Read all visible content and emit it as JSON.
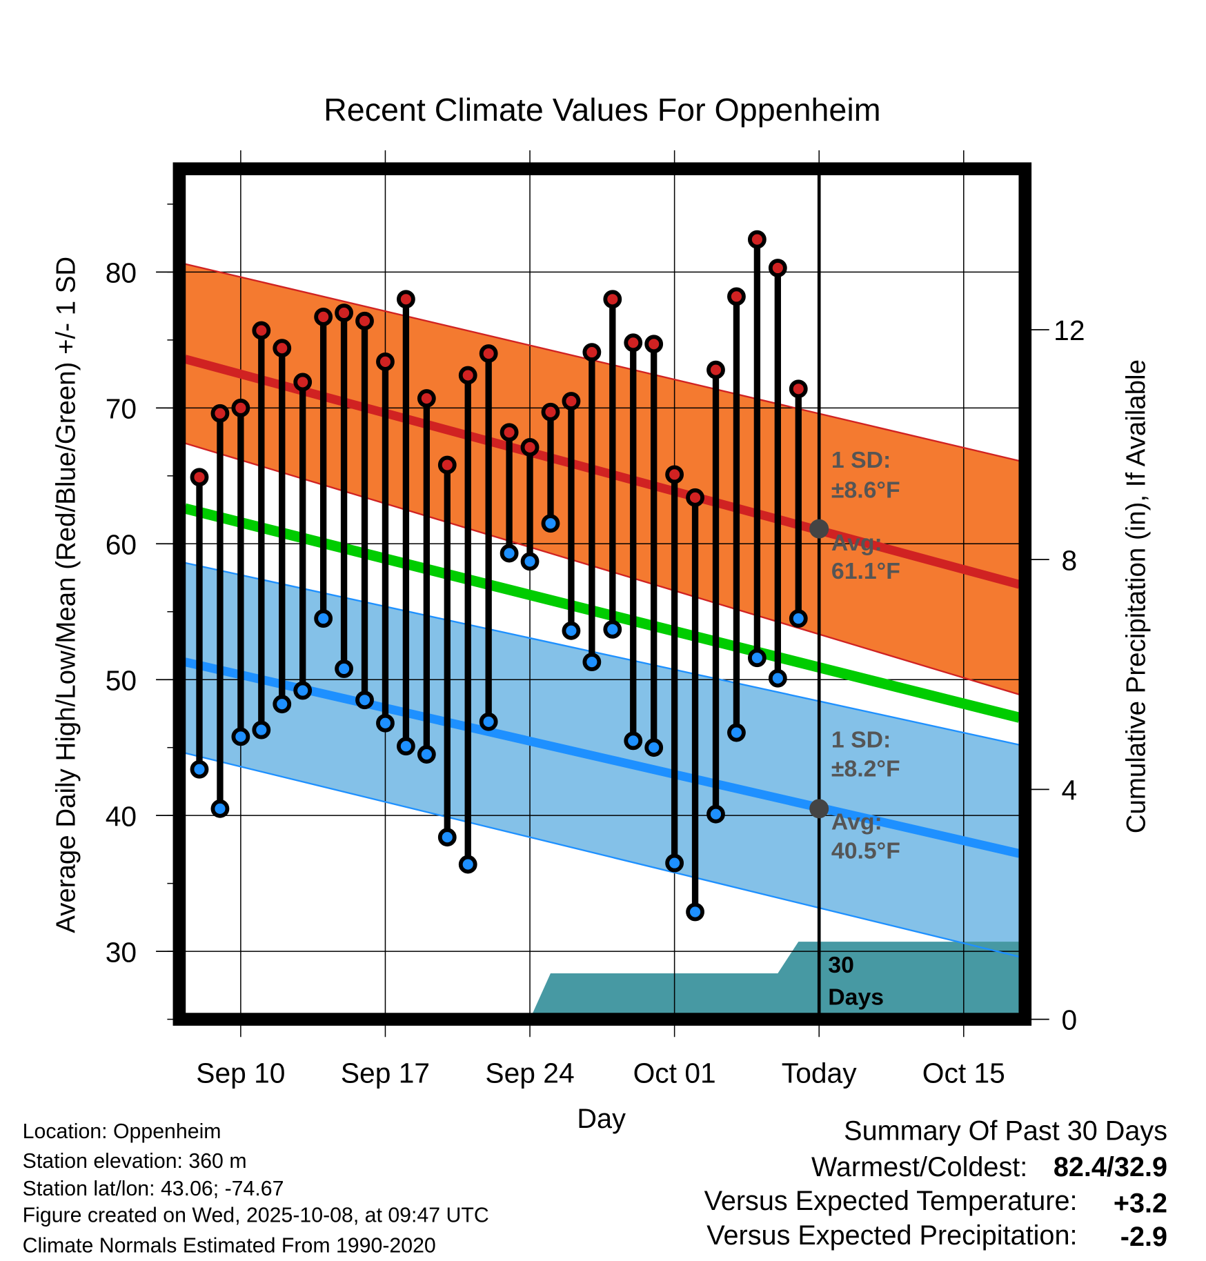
{
  "chart_data": {
    "type": "line",
    "title": "Recent Climate Values For Oppenheim",
    "xlabel": "Day",
    "ylabel": "Average Daily High/Low/Mean (Red/Blue/Green) +/- 1 SD",
    "y2label": "Cumulative Precipitation (in), If Available",
    "xlim_days_from_sep8": [
      -0.7,
      39.7
    ],
    "ylim": [
      25,
      87.6
    ],
    "y2lim": [
      0,
      14.8
    ],
    "yticks": [
      "30",
      "40",
      "50",
      "60",
      "70",
      "80"
    ],
    "y2ticks": [
      "0",
      "4",
      "8",
      "12"
    ],
    "xticks": [
      {
        "day": 2,
        "label": "Sep 10"
      },
      {
        "day": 9,
        "label": "Sep 17"
      },
      {
        "day": 16,
        "label": "Sep 24"
      },
      {
        "day": 23,
        "label": "Oct 01"
      },
      {
        "day": 30,
        "label": "Today"
      },
      {
        "day": 37,
        "label": "Oct 15"
      }
    ],
    "dates": [
      "Sep 08",
      "Sep 09",
      "Sep 10",
      "Sep 11",
      "Sep 12",
      "Sep 13",
      "Sep 14",
      "Sep 15",
      "Sep 16",
      "Sep 17",
      "Sep 18",
      "Sep 19",
      "Sep 20",
      "Sep 21",
      "Sep 22",
      "Sep 23",
      "Sep 24",
      "Sep 25",
      "Sep 26",
      "Sep 27",
      "Sep 28",
      "Sep 29",
      "Sep 30",
      "Oct 01",
      "Oct 02",
      "Oct 03",
      "Oct 04",
      "Oct 05",
      "Oct 06",
      "Oct 07"
    ],
    "highs": [
      64.9,
      69.6,
      70.0,
      75.7,
      74.4,
      71.9,
      76.7,
      77.0,
      76.4,
      73.4,
      78.0,
      70.7,
      65.8,
      72.4,
      74.0,
      68.2,
      67.1,
      69.7,
      70.5,
      74.1,
      78.0,
      74.8,
      74.7,
      65.1,
      63.4,
      72.8,
      78.2,
      82.4,
      80.3,
      71.4
    ],
    "lows": [
      43.4,
      40.5,
      45.8,
      46.3,
      48.2,
      49.2,
      54.5,
      50.8,
      48.5,
      46.8,
      45.1,
      44.5,
      38.4,
      36.4,
      46.9,
      59.3,
      58.7,
      61.5,
      53.6,
      51.3,
      53.7,
      45.5,
      45.0,
      36.5,
      32.9,
      40.1,
      46.1,
      51.6,
      50.1,
      54.5
    ],
    "normals_at_xlim": {
      "high_plus_sd": [
        80.6,
        66.1
      ],
      "high_avg": [
        73.6,
        57.0
      ],
      "high_minus_sd": [
        67.4,
        48.9
      ],
      "mean": [
        62.6,
        47.2
      ],
      "low_plus_sd": [
        58.6,
        45.2
      ],
      "low_avg": [
        51.3,
        37.2
      ],
      "low_minus_sd": [
        44.6,
        29.6
      ]
    },
    "precip_cumulative": [
      {
        "day": -0.7,
        "value": 0
      },
      {
        "day": 16,
        "value": 0
      },
      {
        "day": 17,
        "value": 0.8
      },
      {
        "day": 28,
        "value": 0.8
      },
      {
        "day": 29,
        "value": 1.35
      },
      {
        "day": 39.7,
        "value": 1.35
      }
    ],
    "annotations": {
      "high_sd_line1": "1 SD:",
      "high_sd_line2": "±8.6°F",
      "high_avg_line1": "Avg:",
      "high_avg_line2": "61.1°F",
      "low_sd_line1": "1 SD:",
      "low_sd_line2": "±8.2°F",
      "low_avg_line1": "Avg:",
      "low_avg_line2": "40.5°F",
      "days_line1": "30",
      "days_line2": "Days",
      "today_high_avg": 61.1,
      "today_low_avg": 40.5
    },
    "colors": {
      "high_band": "#f47a30",
      "high_line": "#d02222",
      "mean": "#00cc00",
      "low_band": "#84c1e8",
      "low_line": "#1e90ff",
      "precip": "#4799a3",
      "high_dot": "#d02222",
      "low_dot": "#1e90ff"
    }
  },
  "footer": {
    "location": "Location: Oppenheim",
    "elevation": "Station elevation: 360 m",
    "latlon": "Station lat/lon: 43.06; -74.67",
    "created": "Figure created on Wed, 2025-10-08, at 09:47 UTC",
    "normals": "Climate Normals Estimated From 1990-2020"
  },
  "summary": {
    "title": "Summary Of Past 30 Days",
    "warmest_label": "Warmest/Coldest:",
    "warmest_value": "82.4/32.9",
    "temp_label": "Versus Expected Temperature:",
    "temp_value": "+3.2",
    "temp_color": "#d03030",
    "precip_label": "Versus Expected Precipitation:",
    "precip_value": "-2.9",
    "precip_color": "#a0522d"
  }
}
